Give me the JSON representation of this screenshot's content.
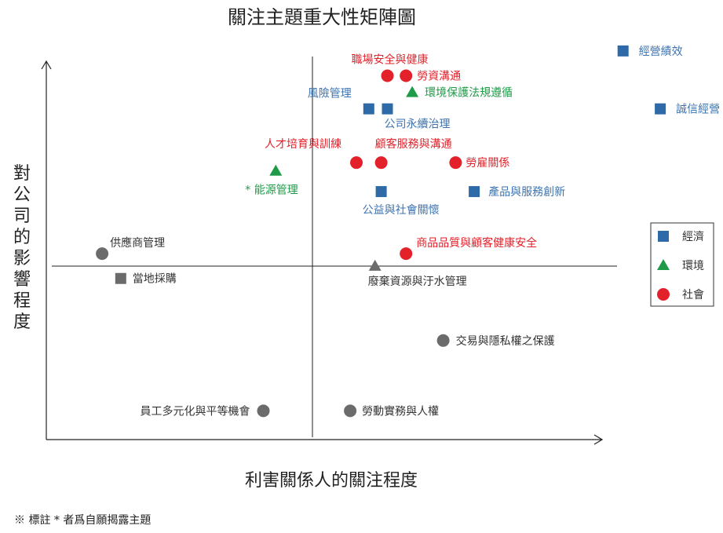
{
  "chart_data": {
    "type": "scatter",
    "title": "關注主題重大性矩陣圖",
    "xlabel": "利害關係人的關注程度",
    "ylabel": "對公司的影響程度",
    "legend": {
      "placement": "right",
      "entries": [
        {
          "name": "經濟",
          "marker": "square",
          "color": "#2e6aa8"
        },
        {
          "name": "環境",
          "marker": "triangle",
          "color": "#1f9a48"
        },
        {
          "name": "社會",
          "marker": "circle",
          "color": "#e3212a"
        }
      ]
    },
    "points": [
      {
        "label": "經營績效",
        "category": "經濟",
        "x": 9.3,
        "y": 9.3
      },
      {
        "label": "誠信經營",
        "category": "經濟",
        "x": 9.9,
        "y": 7.9
      },
      {
        "label": "風險管理",
        "category": "經濟",
        "x": 5.2,
        "y": 7.9
      },
      {
        "label": "公司永續治理",
        "category": "經濟",
        "x": 5.5,
        "y": 7.9
      },
      {
        "label": "公益與社會關懷",
        "category": "經濟",
        "x": 5.4,
        "y": 5.9
      },
      {
        "label": "產品與服務創新",
        "category": "經濟",
        "x": 6.9,
        "y": 5.9
      },
      {
        "label": "當地採購",
        "category": "其他",
        "x": 1.2,
        "y": 3.8
      },
      {
        "label": "環境保護法規遵循",
        "category": "環境",
        "x": 5.9,
        "y": 8.3
      },
      {
        "label": "* 能源管理",
        "category": "環境",
        "x": 3.7,
        "y": 6.4
      },
      {
        "label": "廢棄資源與汙水管理",
        "category": "其他",
        "x": 5.3,
        "y": 4.1
      },
      {
        "label": "職場安全與健康",
        "category": "社會",
        "x": 5.5,
        "y": 8.7
      },
      {
        "label": "勞資溝通",
        "category": "社會",
        "x": 5.8,
        "y": 8.7
      },
      {
        "label": "人才培育與訓練",
        "category": "社會",
        "x": 5.0,
        "y": 6.6
      },
      {
        "label": "顧客服務與溝通",
        "category": "社會",
        "x": 5.4,
        "y": 6.6
      },
      {
        "label": "勞雇關係",
        "category": "社會",
        "x": 6.6,
        "y": 6.6
      },
      {
        "label": "商品品質與顧客健康安全",
        "category": "社會",
        "x": 5.8,
        "y": 4.4
      },
      {
        "label": "供應商管理",
        "category": "其他",
        "x": 0.9,
        "y": 4.4
      },
      {
        "label": "交易與隱私權之保護",
        "category": "其他",
        "x": 6.4,
        "y": 2.3
      },
      {
        "label": "員工多元化與平等機會",
        "category": "其他",
        "x": 3.5,
        "y": 0.6
      },
      {
        "label": "勞動實務與人權",
        "category": "其他",
        "x": 4.9,
        "y": 0.6
      }
    ],
    "xlim": [
      0,
      10
    ],
    "ylim": [
      0,
      10
    ],
    "grid": false
  },
  "footnote": "※ 標註 * 者爲自願揭露主題",
  "colors": {
    "economy": "#2e6aa8",
    "environment": "#1f9a48",
    "society": "#e3212a",
    "other": "#6b6b6b",
    "axis": "#222222"
  }
}
